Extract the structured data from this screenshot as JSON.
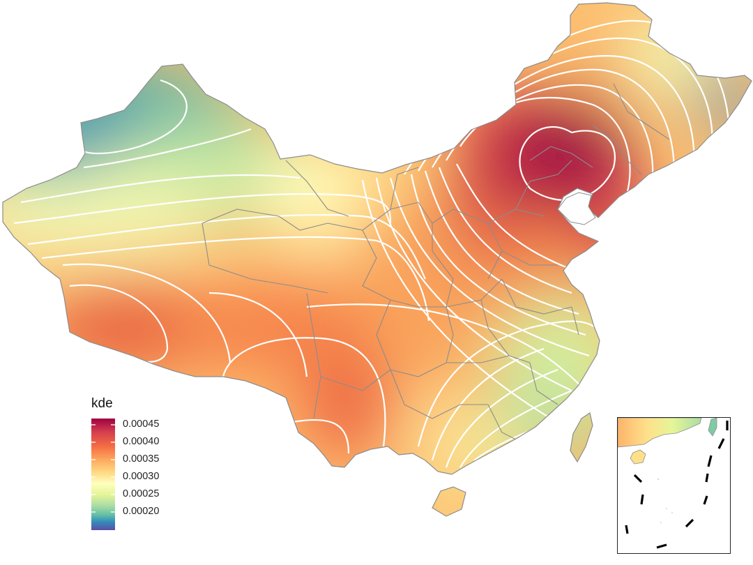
{
  "legend": {
    "title": "kde",
    "breaks": [
      "0.00045",
      "0.00040",
      "0.00035",
      "0.00030",
      "0.00025",
      "0.00020"
    ],
    "palette": [
      "#9e0142",
      "#c21c4a",
      "#d53e4f",
      "#e85b4a",
      "#f46d43",
      "#f88d52",
      "#fdae61",
      "#fdc978",
      "#fee08b",
      "#fef0a5",
      "#ffffbf",
      "#eff8a6",
      "#e6f598",
      "#c7e89f",
      "#abdda4",
      "#86cfa5",
      "#66c2a5",
      "#4aa3b4",
      "#3288bd",
      "#4a6eb0",
      "#5e4fa2"
    ]
  },
  "map": {
    "fill_variable": "kde",
    "density_peak_region": "north-east (Beijing / Hebei / Liaoning area)",
    "density_low_regions": [
      "far north-west (northern Xinjiang)",
      "far north-east tip (Heilongjiang)",
      "south-east coast and Taiwan"
    ],
    "contour_color": "#ffffff",
    "boundary_color": "#8c8c8c"
  },
  "inset": {
    "description": "South China Sea inset with nine-dash line"
  }
}
